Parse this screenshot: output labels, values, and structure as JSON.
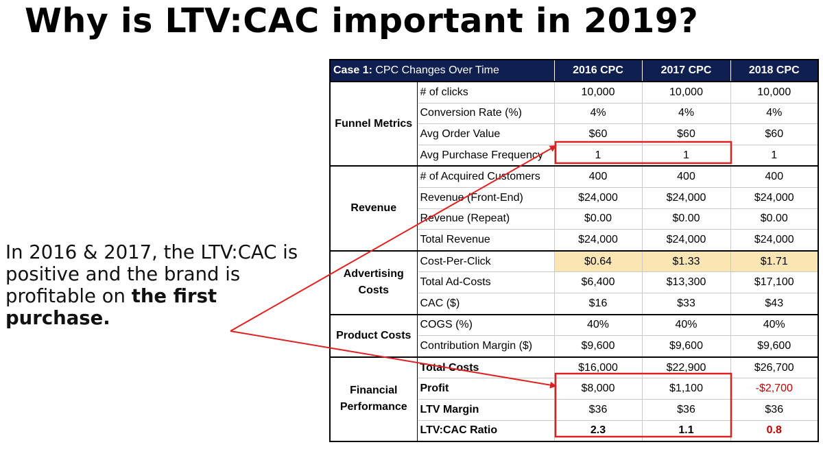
{
  "title": "Why is LTV:CAC important in 2019?",
  "side_text": {
    "plain": "In 2016 & 2017, the LTV:CAC is positive and the brand is profitable on ",
    "bold": "the first purchase."
  },
  "table": {
    "case_label": "Case 1:",
    "case_title": "CPC Changes Over Time",
    "columns": [
      "2016 CPC",
      "2017 CPC",
      "2018 CPC"
    ],
    "sections": [
      {
        "group": "Funnel Metrics",
        "rows": [
          {
            "metric": "# of clicks",
            "values": [
              "10,000",
              "10,000",
              "10,000"
            ]
          },
          {
            "metric": "Conversion Rate (%)",
            "values": [
              "4%",
              "4%",
              "4%"
            ]
          },
          {
            "metric": "Avg Order Value",
            "values": [
              "$60",
              "$60",
              "$60"
            ]
          },
          {
            "metric": "Avg Purchase Frequency",
            "values": [
              "1",
              "1",
              "1"
            ]
          }
        ]
      },
      {
        "group": "Revenue",
        "rows": [
          {
            "metric": "# of Acquired Customers",
            "values": [
              "400",
              "400",
              "400"
            ]
          },
          {
            "metric": "Revenue (Front-End)",
            "values": [
              "$24,000",
              "$24,000",
              "$24,000"
            ]
          },
          {
            "metric": "Revenue (Repeat)",
            "values": [
              "$0.00",
              "$0.00",
              "$0.00"
            ]
          },
          {
            "metric": "Total Revenue",
            "values": [
              "$24,000",
              "$24,000",
              "$24,000"
            ]
          }
        ]
      },
      {
        "group": "Advertising Costs",
        "rows": [
          {
            "metric": "Cost-Per-Click",
            "values": [
              "$0.64",
              "$1.33",
              "$1.71"
            ],
            "highlight": true
          },
          {
            "metric": "Total Ad-Costs",
            "values": [
              "$6,400",
              "$13,300",
              "$17,100"
            ]
          },
          {
            "metric": "CAC ($)",
            "values": [
              "$16",
              "$33",
              "$43"
            ]
          }
        ]
      },
      {
        "group": "Product Costs",
        "rows": [
          {
            "metric": "COGS (%)",
            "values": [
              "40%",
              "40%",
              "40%"
            ]
          },
          {
            "metric": "Contribution Margin ($)",
            "values": [
              "$9,600",
              "$9,600",
              "$9,600"
            ]
          }
        ]
      },
      {
        "group": "Financial Performance",
        "rows": [
          {
            "metric": "Total Costs",
            "values": [
              "$16,000",
              "$22,900",
              "$26,700"
            ],
            "bold_metric": true
          },
          {
            "metric": "Profit",
            "values": [
              "$8,000",
              "$1,100",
              "-$2,700"
            ],
            "bold_metric": true,
            "negative_cols": [
              2
            ]
          },
          {
            "metric": "LTV Margin",
            "values": [
              "$36",
              "$36",
              "$36"
            ],
            "bold_metric": true
          },
          {
            "metric": "LTV:CAC Ratio",
            "values": [
              "2.3",
              "1.1",
              "0.8"
            ],
            "bold_metric": true,
            "bold_values": true,
            "negative_cols": [
              2
            ]
          }
        ]
      }
    ]
  },
  "colors": {
    "header_bg": "#0f1f4f",
    "highlight_bg": "#fbe5b3",
    "negative": "#c00000",
    "annotation": "#e02020"
  }
}
